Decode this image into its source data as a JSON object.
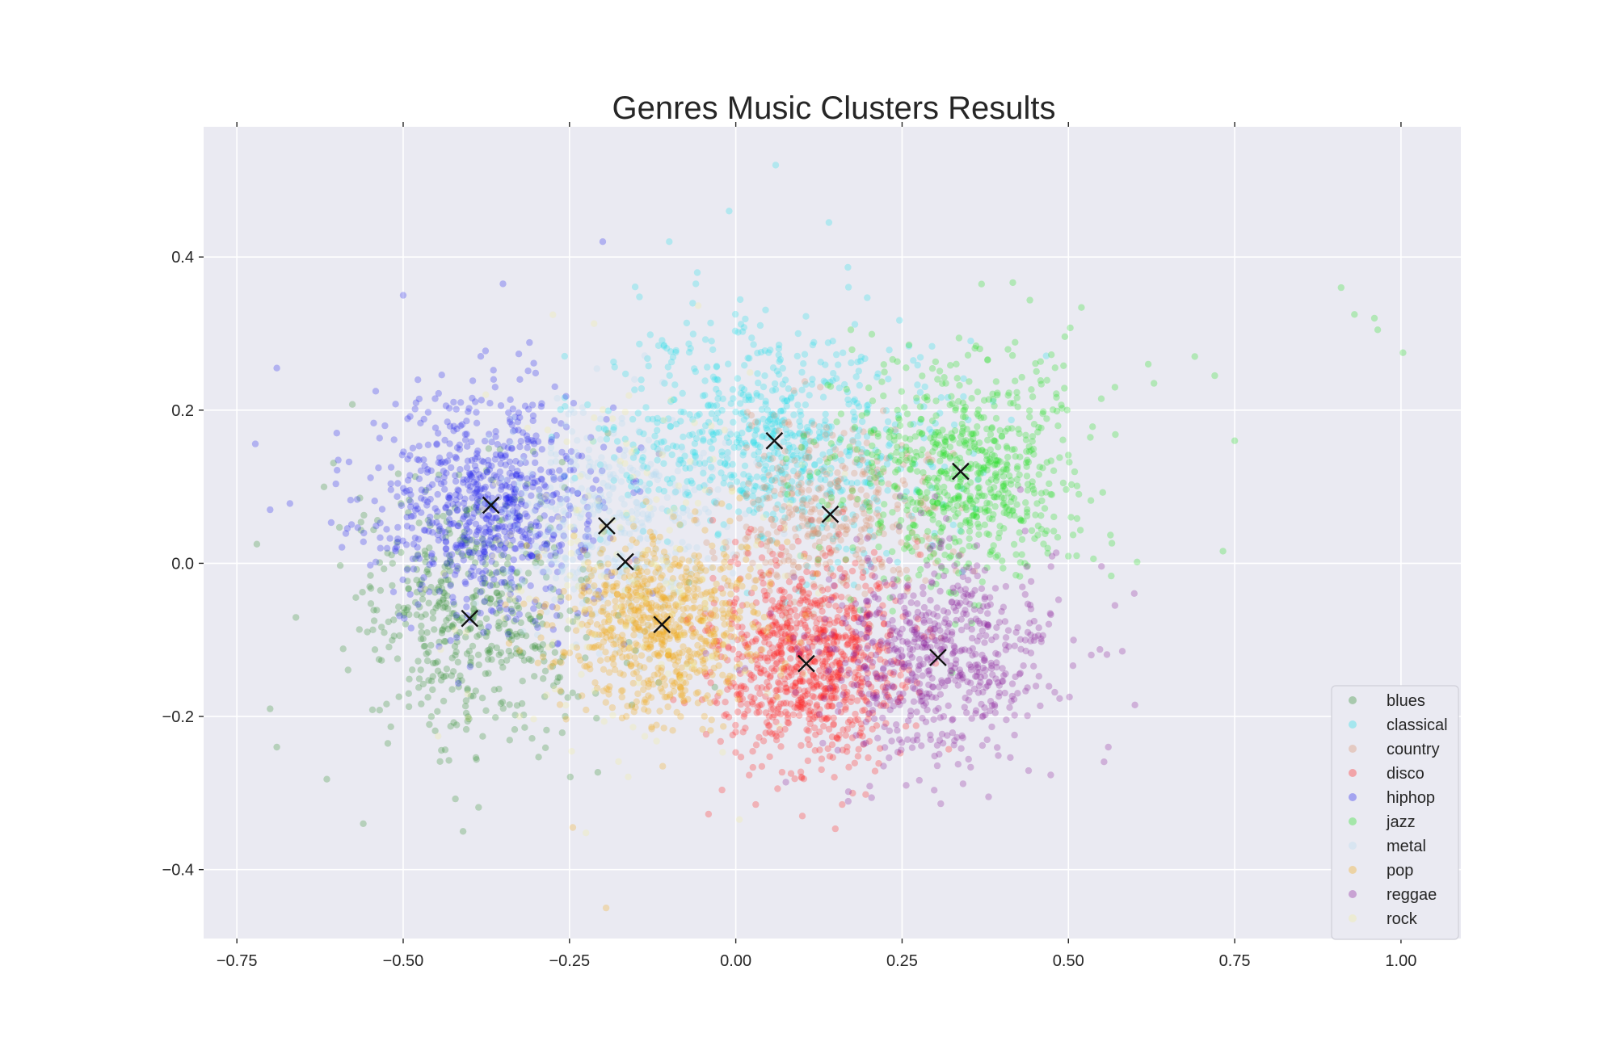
{
  "chart_data": {
    "type": "scatter",
    "title": "Genres Music Clusters Results",
    "xlabel": "",
    "ylabel": "",
    "xlim": [
      -0.8,
      1.09
    ],
    "ylim": [
      -0.49,
      0.57
    ],
    "x_ticks": [
      -0.75,
      -0.5,
      -0.25,
      0.0,
      0.25,
      0.5,
      0.75,
      1.0
    ],
    "x_tick_labels": [
      "−0.75",
      "−0.50",
      "−0.25",
      "0.00",
      "0.25",
      "0.50",
      "0.75",
      "1.00"
    ],
    "y_ticks": [
      0.4,
      0.2,
      0.0,
      -0.2,
      -0.4
    ],
    "y_tick_labels": [
      "0.4",
      "0.2",
      "0.0",
      "−0.2",
      "−0.4"
    ],
    "grid": true,
    "background_color": "#eaeaf2",
    "legend_position": "lower-right",
    "series": [
      {
        "name": "blues",
        "color": "#2e8b2e",
        "center": [
          -0.4,
          -0.07
        ],
        "spread": [
          0.09,
          0.09
        ],
        "count": 520
      },
      {
        "name": "classical",
        "color": "#22e0e8",
        "center": [
          0.06,
          0.16
        ],
        "spread": [
          0.13,
          0.075
        ],
        "count": 760
      },
      {
        "name": "country",
        "color": "#d9906a",
        "center": [
          0.14,
          0.065
        ],
        "spread": [
          0.08,
          0.06
        ],
        "count": 380
      },
      {
        "name": "disco",
        "color": "#ff2020",
        "center": [
          0.11,
          -0.13
        ],
        "spread": [
          0.075,
          0.065
        ],
        "count": 900
      },
      {
        "name": "hiphop",
        "color": "#2020ee",
        "center": [
          -0.37,
          0.075
        ],
        "spread": [
          0.085,
          0.075
        ],
        "count": 780
      },
      {
        "name": "jazz",
        "color": "#22e022",
        "center": [
          0.34,
          0.12
        ],
        "spread": [
          0.09,
          0.075
        ],
        "count": 720
      },
      {
        "name": "metal",
        "color": "#b8dcf0",
        "center": [
          -0.19,
          0.05
        ],
        "spread": [
          0.08,
          0.07
        ],
        "count": 420
      },
      {
        "name": "pop",
        "color": "#f0a818",
        "center": [
          -0.11,
          -0.08
        ],
        "spread": [
          0.075,
          0.06
        ],
        "count": 760
      },
      {
        "name": "reggae",
        "color": "#8a1e9a",
        "center": [
          0.3,
          -0.12
        ],
        "spread": [
          0.09,
          0.07
        ],
        "count": 640
      },
      {
        "name": "rock",
        "color": "#f2ee9a",
        "center": [
          -0.17,
          0.0
        ],
        "spread": [
          0.14,
          0.13
        ],
        "count": 180
      }
    ],
    "centroids": [
      {
        "x": -0.4,
        "y": -0.072
      },
      {
        "x": 0.058,
        "y": 0.16
      },
      {
        "x": 0.142,
        "y": 0.064
      },
      {
        "x": 0.106,
        "y": -0.131
      },
      {
        "x": -0.368,
        "y": 0.076
      },
      {
        "x": 0.338,
        "y": 0.12
      },
      {
        "x": -0.194,
        "y": 0.049
      },
      {
        "x": -0.111,
        "y": -0.08
      },
      {
        "x": 0.304,
        "y": -0.123
      },
      {
        "x": -0.166,
        "y": 0.002
      }
    ],
    "outliers": [
      {
        "series": "jazz",
        "points": [
          [
            0.91,
            0.36
          ],
          [
            0.93,
            0.325
          ],
          [
            0.96,
            0.32
          ],
          [
            0.965,
            0.305
          ],
          [
            1.003,
            0.275
          ],
          [
            0.75,
            0.16
          ],
          [
            0.72,
            0.245
          ],
          [
            0.69,
            0.27
          ],
          [
            0.62,
            0.26
          ],
          [
            0.57,
            0.23
          ]
        ]
      },
      {
        "series": "classical",
        "points": [
          [
            0.06,
            0.52
          ],
          [
            -0.01,
            0.46
          ],
          [
            0.14,
            0.445
          ],
          [
            -0.1,
            0.42
          ],
          [
            -0.06,
            0.365
          ]
        ]
      },
      {
        "series": "hiphop",
        "points": [
          [
            -0.2,
            0.42
          ],
          [
            -0.69,
            0.255
          ],
          [
            -0.7,
            0.07
          ],
          [
            -0.5,
            0.35
          ],
          [
            -0.35,
            0.365
          ]
        ]
      },
      {
        "series": "pop",
        "points": [
          [
            -0.195,
            -0.45
          ],
          [
            -0.245,
            -0.345
          ]
        ]
      },
      {
        "series": "blues",
        "points": [
          [
            -0.7,
            -0.19
          ],
          [
            -0.69,
            -0.24
          ],
          [
            -0.56,
            -0.34
          ],
          [
            -0.41,
            -0.35
          ],
          [
            -0.72,
            0.025
          ]
        ]
      },
      {
        "series": "reggae",
        "points": [
          [
            0.56,
            -0.24
          ],
          [
            0.6,
            -0.185
          ],
          [
            0.57,
            -0.055
          ],
          [
            0.38,
            -0.305
          ]
        ]
      },
      {
        "series": "disco",
        "points": [
          [
            0.1,
            -0.33
          ],
          [
            0.03,
            -0.315
          ],
          [
            0.16,
            -0.315
          ]
        ]
      }
    ]
  }
}
